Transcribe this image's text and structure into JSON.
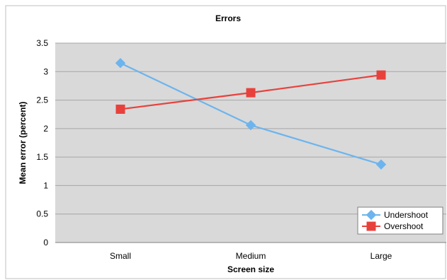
{
  "chart_data": {
    "type": "line",
    "title": "Errors",
    "xlabel": "Screen size",
    "ylabel": "Mean error (percent)",
    "categories": [
      "Small",
      "Medium",
      "Large"
    ],
    "ylim": [
      0,
      3.5
    ],
    "yticks": [
      "0",
      "0.5",
      "1",
      "1.5",
      "2",
      "2.5",
      "3",
      "3.5"
    ],
    "grid": true,
    "legend_position": "bottom-right",
    "plot_background": "#d9d9d9",
    "series": [
      {
        "name": "Undershoot",
        "color": "#6cb4ee",
        "marker": "diamond",
        "values": [
          3.15,
          2.06,
          1.37
        ]
      },
      {
        "name": "Overshoot",
        "color": "#e8413c",
        "marker": "square",
        "values": [
          2.34,
          2.63,
          2.94
        ]
      }
    ]
  }
}
